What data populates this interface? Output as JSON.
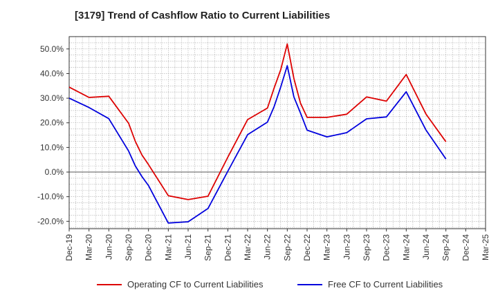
{
  "chart_data": {
    "type": "line",
    "title": "[3179]  Trend of Cashflow Ratio to Current Liabilities",
    "xlabel": "",
    "ylabel": "",
    "ylim": [
      -23,
      55
    ],
    "y_ticks": [
      -20,
      -10,
      0,
      10,
      20,
      30,
      40,
      50
    ],
    "y_tick_labels": [
      "-20.0%",
      "-10.0%",
      "0.0%",
      "10.0%",
      "20.0%",
      "30.0%",
      "40.0%",
      "50.0%"
    ],
    "x_tick_labels": [
      "Dec-19",
      "Mar-20",
      "Jun-20",
      "Sep-20",
      "Dec-20",
      "Mar-21",
      "Jun-21",
      "Sep-21",
      "Dec-21",
      "Mar-22",
      "Jun-22",
      "Sep-22",
      "Dec-22",
      "Mar-23",
      "Jun-23",
      "Sep-23",
      "Dec-23",
      "Mar-24",
      "Jun-24",
      "Sep-24",
      "Dec-24",
      "Mar-25"
    ],
    "grid": true,
    "legend_position": "bottom",
    "x": [
      "Dec-19",
      "Jan-20",
      "Feb-20",
      "Mar-20",
      "Apr-20",
      "May-20",
      "Jun-20",
      "Jul-20",
      "Aug-20",
      "Sep-20",
      "Oct-20",
      "Nov-20",
      "Dec-20",
      "Jan-21",
      "Feb-21",
      "Mar-21",
      "Apr-21",
      "May-21",
      "Jun-21",
      "Jul-21",
      "Aug-21",
      "Sep-21",
      "Oct-21",
      "Nov-21",
      "Dec-21",
      "Jan-22",
      "Feb-22",
      "Mar-22",
      "Apr-22",
      "May-22",
      "Jun-22",
      "Jul-22",
      "Aug-22",
      "Sep-22",
      "Oct-22",
      "Nov-22",
      "Dec-22",
      "Jan-23",
      "Feb-23",
      "Mar-23",
      "Apr-23",
      "May-23",
      "Jun-23",
      "Jul-23",
      "Aug-23",
      "Sep-23",
      "Oct-23",
      "Nov-23",
      "Dec-23",
      "Jan-24",
      "Feb-24",
      "Mar-24",
      "Apr-24",
      "May-24",
      "Jun-24",
      "Jul-24",
      "Aug-24",
      "Sep-24"
    ],
    "series": [
      {
        "name": "Operating CF to Current Liabilities",
        "color": "#dd0000",
        "values": [
          34.5,
          null,
          null,
          30.3,
          null,
          null,
          30.8,
          null,
          null,
          19.8,
          12.5,
          7.0,
          3.0,
          null,
          null,
          -9.6,
          null,
          null,
          -11.2,
          null,
          null,
          -9.8,
          null,
          null,
          6.0,
          null,
          null,
          21.3,
          null,
          null,
          26.0,
          34.0,
          41.5,
          52.0,
          38.0,
          28.0,
          22.2,
          null,
          null,
          22.2,
          null,
          null,
          23.5,
          null,
          null,
          30.5,
          null,
          null,
          28.8,
          null,
          null,
          39.6,
          null,
          null,
          23.5,
          null,
          null,
          12.3
        ]
      },
      {
        "name": "Free CF to Current Liabilities",
        "color": "#0000dd",
        "values": [
          30.0,
          null,
          null,
          26.2,
          null,
          null,
          21.7,
          null,
          null,
          8.5,
          2.5,
          -1.8,
          -5.5,
          null,
          null,
          -20.7,
          null,
          null,
          -20.2,
          null,
          null,
          -14.8,
          null,
          null,
          0.3,
          null,
          null,
          15.2,
          null,
          null,
          20.3,
          26.5,
          34.5,
          43.2,
          30.5,
          24.0,
          17.0,
          null,
          null,
          14.3,
          null,
          null,
          16.0,
          null,
          null,
          21.6,
          null,
          null,
          22.4,
          null,
          null,
          32.6,
          null,
          null,
          17.0,
          null,
          null,
          5.3
        ]
      }
    ]
  }
}
